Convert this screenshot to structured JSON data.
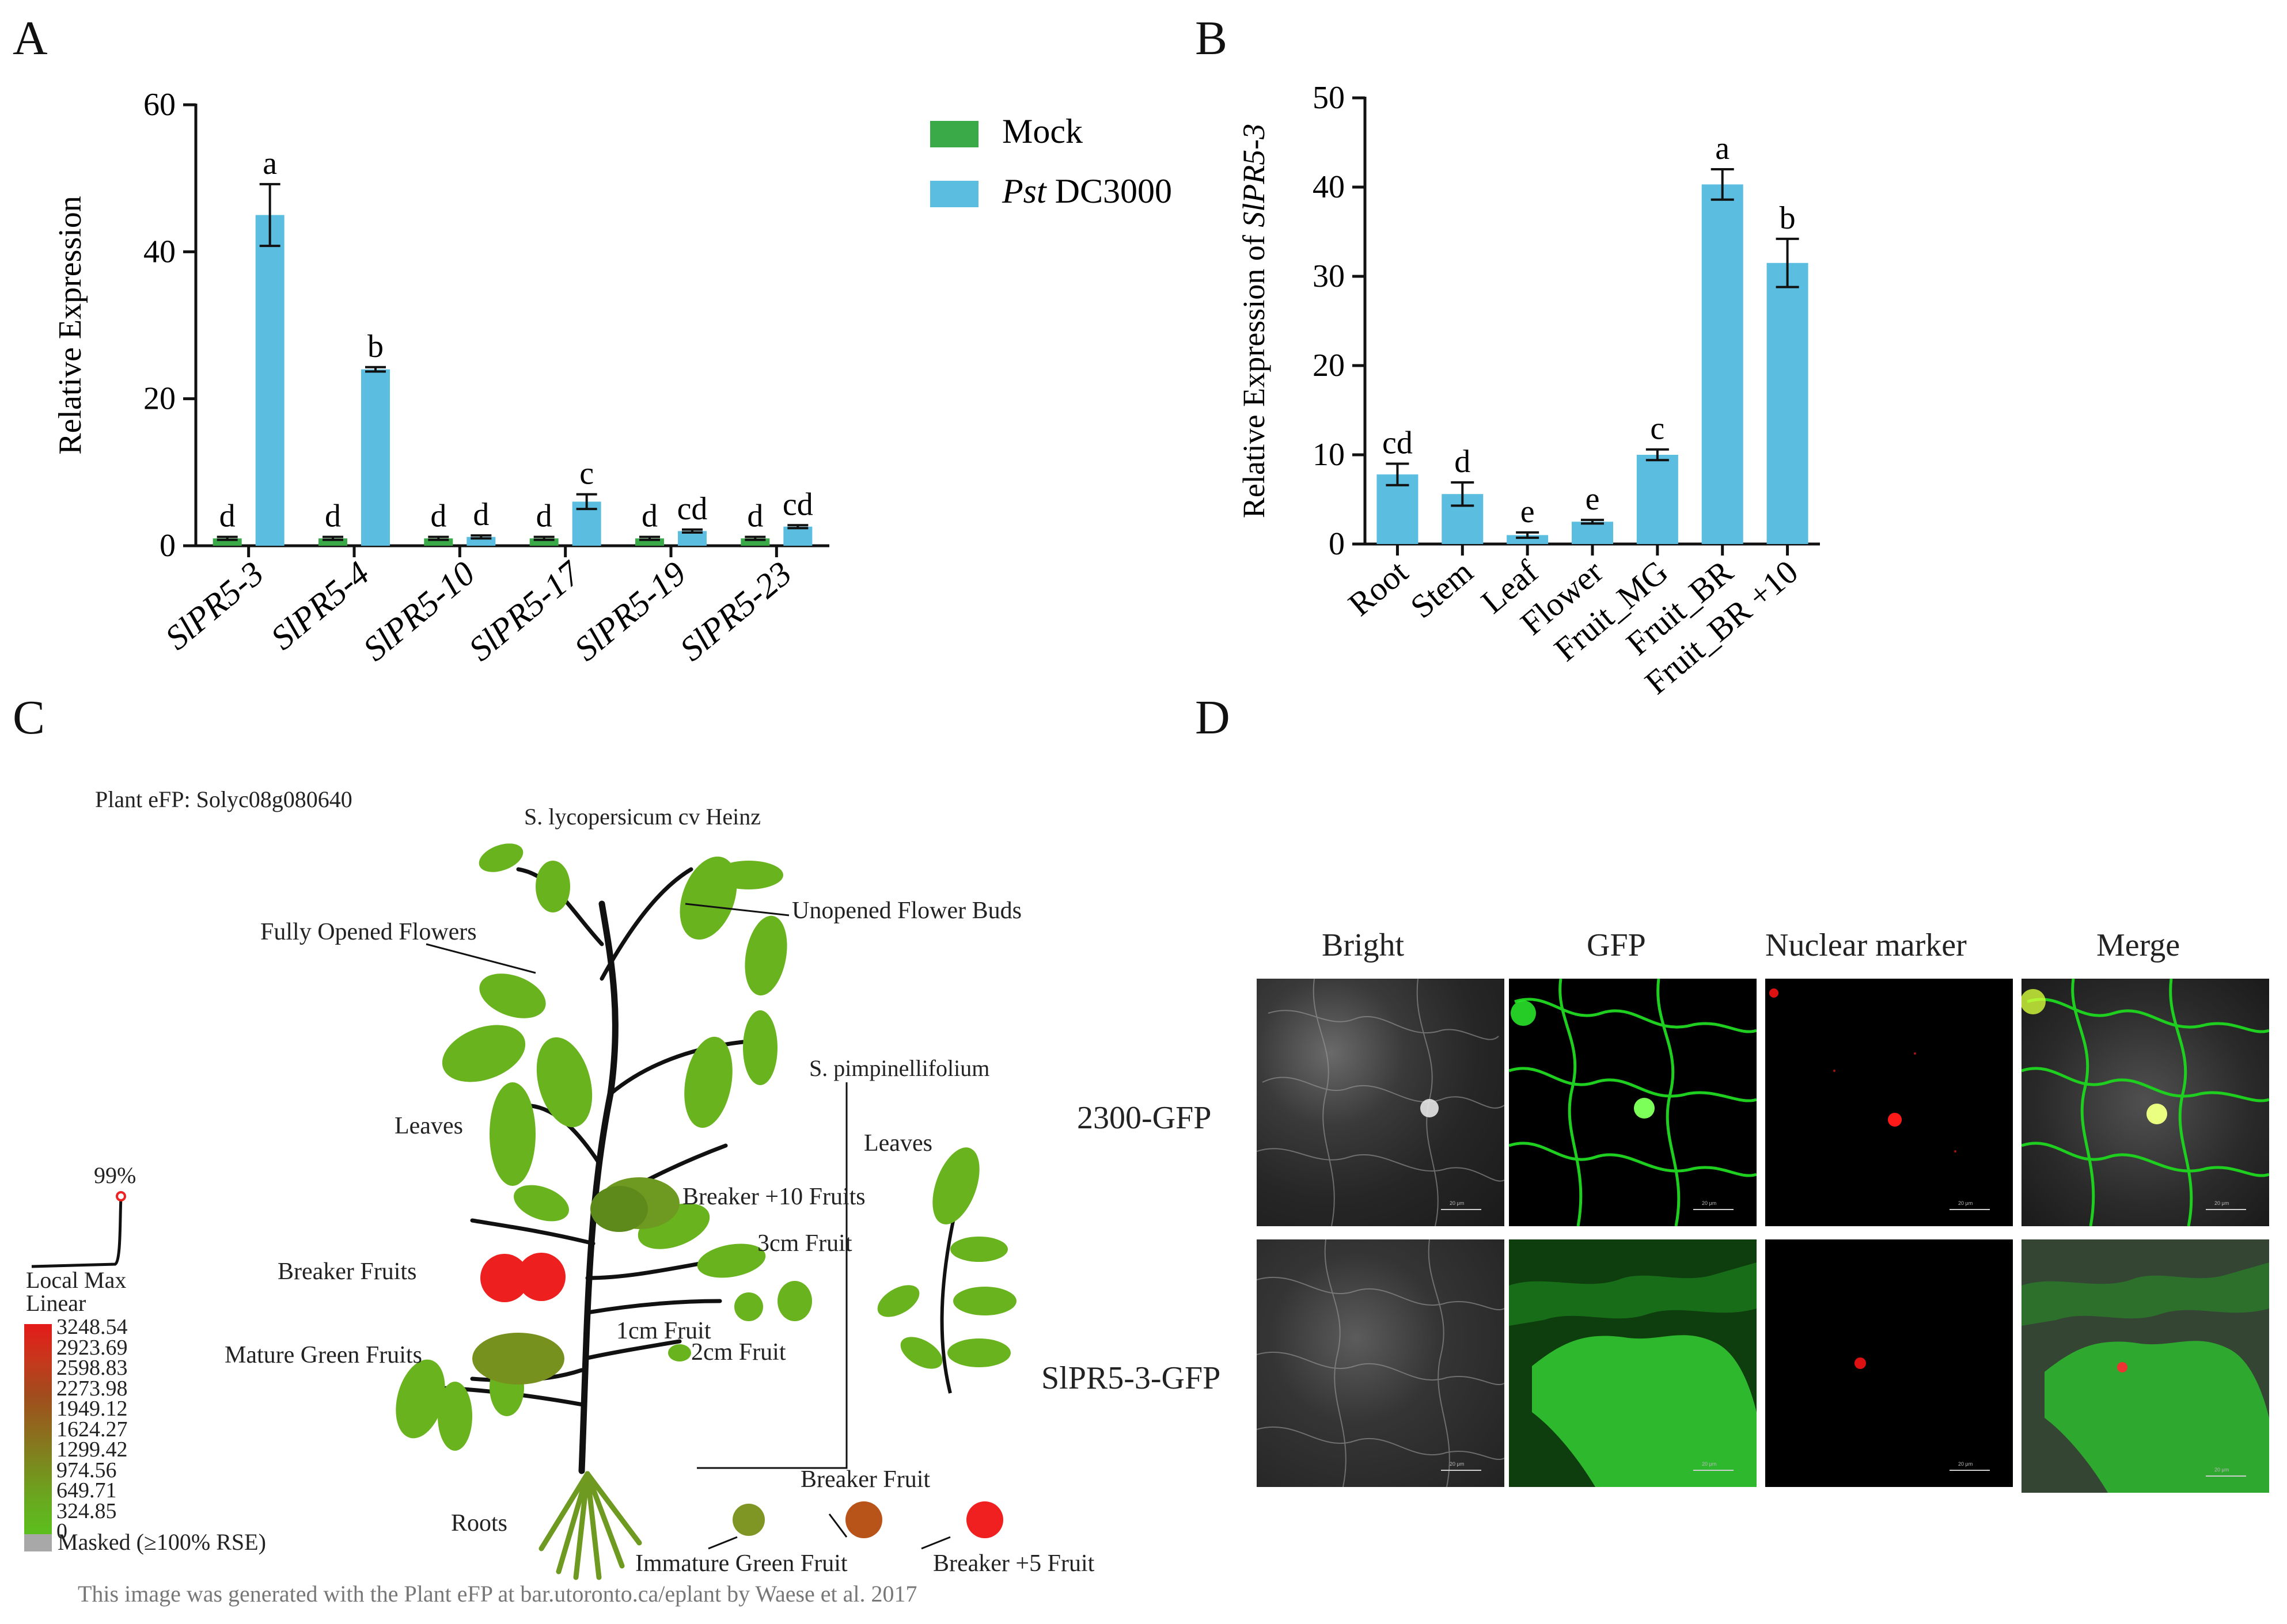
{
  "panels": {
    "a": "A",
    "b": "B",
    "c": "C",
    "d": "D"
  },
  "chart_data": [
    {
      "type": "bar",
      "ylabel": "Relative Expression",
      "ylim": [
        0,
        60
      ],
      "yticks": [
        "0",
        "20",
        "40",
        "60"
      ],
      "categories": [
        "SlPR5-3",
        "SlPR5-4",
        "SlPR5-10",
        "SlPR5-17",
        "SlPR5-19",
        "SlPR5-23"
      ],
      "series": [
        {
          "name": "Mock",
          "color": "#3aaa48",
          "values": [
            1,
            1,
            1,
            1,
            1,
            1
          ],
          "errors": [
            0.2,
            0.2,
            0.2,
            0.2,
            0.2,
            0.2
          ],
          "letters": [
            "d",
            "d",
            "d",
            "d",
            "d",
            "d"
          ]
        },
        {
          "name": "DC3000",
          "name_italic": "Pst",
          "color": "#5bbde0",
          "values": [
            45,
            24,
            1.2,
            6,
            2,
            2.6
          ],
          "errors": [
            4.2,
            0.3,
            0.2,
            1.0,
            0.2,
            0.2
          ],
          "letters": [
            "a",
            "b",
            "d",
            "c",
            "cd",
            "cd"
          ]
        }
      ],
      "legend": "right"
    },
    {
      "type": "bar",
      "ylabel_prefix": "Relative Expression of ",
      "ylabel_italic": "SlPR5-3",
      "ylim": [
        0,
        50
      ],
      "yticks": [
        "0",
        "10",
        "20",
        "30",
        "40",
        "50"
      ],
      "categories": [
        "Root",
        "Stem",
        "Leaf",
        "Flower",
        "Fruit_MG",
        "Fruit_BR",
        "Fruit_BR +10"
      ],
      "values": [
        7.8,
        5.6,
        1.0,
        2.5,
        10.0,
        40.3,
        31.5
      ],
      "errors": [
        1.2,
        1.3,
        0.3,
        0.2,
        0.6,
        1.7,
        2.7
      ],
      "letters": [
        "cd",
        "d",
        "e",
        "e",
        "c",
        "a",
        "b"
      ],
      "color": "#5bbde0"
    }
  ],
  "efp": {
    "title": "Plant eFP: Solyc08g080640",
    "species": "S. lycopersicum cv Heinz",
    "species2": "S. pimpinellifolium",
    "labels": {
      "unopened_flower_buds": "Unopened Flower Buds",
      "fully_opened_flowers": "Fully Opened Flowers",
      "leaves": "Leaves",
      "leaves2": "Leaves",
      "breaker10": "Breaker +10 Fruits",
      "fruit3cm": "3cm Fruit",
      "breaker_fruits": "Breaker Fruits",
      "fruit1cm": "1cm Fruit",
      "fruit2cm": "2cm Fruit",
      "mature_green": "Mature Green Fruits",
      "roots": "Roots",
      "breaker_fruit": "Breaker Fruit",
      "immature_green": "Immature Green Fruit",
      "breaker5": "Breaker +5 Fruit"
    },
    "legend": {
      "percentile": "99%",
      "local_max": "Local Max",
      "linear": "Linear",
      "values": [
        "3248.54",
        "2923.69",
        "2598.83",
        "2273.98",
        "1949.12",
        "1624.27",
        "1299.42",
        "974.56",
        "649.71",
        "324.85",
        "0"
      ],
      "masked": "Masked (≥100% RSE)"
    },
    "footer": "This image was generated with the Plant eFP at bar.utoronto.ca/eplant by Waese et al. 2017"
  },
  "microscopy": {
    "columns": [
      "Bright",
      "GFP",
      "Nuclear marker",
      "Merge"
    ],
    "rows": [
      "2300-GFP",
      "SlPR5-3-GFP"
    ],
    "scale": "20 μm"
  }
}
